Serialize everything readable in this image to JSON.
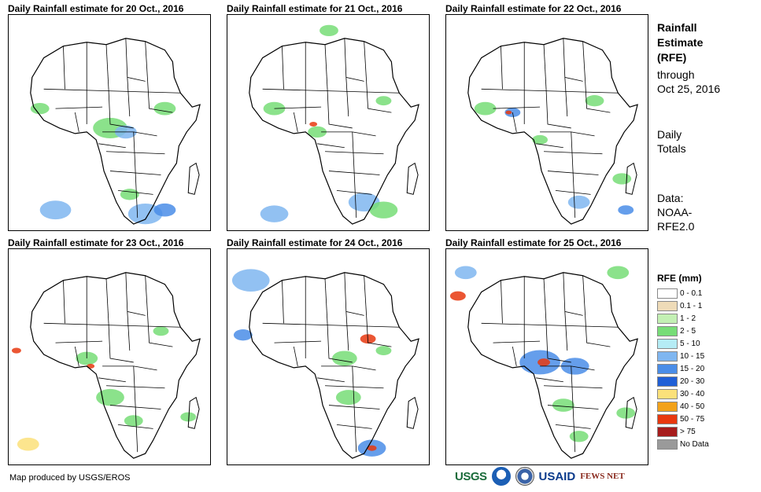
{
  "panels": [
    {
      "title": "Daily Rainfall estimate for 20 Oct., 2016"
    },
    {
      "title": "Daily Rainfall estimate for 21 Oct., 2016"
    },
    {
      "title": "Daily Rainfall estimate for 22 Oct., 2016"
    },
    {
      "title": "Daily Rainfall estimate for 23 Oct., 2016"
    },
    {
      "title": "Daily Rainfall estimate for 24 Oct., 2016"
    },
    {
      "title": "Daily Rainfall estimate for 25 Oct., 2016"
    }
  ],
  "side": {
    "title_l1": "Rainfall",
    "title_l2": "Estimate",
    "title_l3": "(RFE)",
    "through_l1": "through",
    "through_l2": "Oct 25, 2016",
    "totals_l1": "Daily",
    "totals_l2": "Totals",
    "data_l1": "Data:",
    "data_l2": "NOAA-",
    "data_l3": "RFE2.0"
  },
  "legend": {
    "title": "RFE (mm)",
    "items": [
      {
        "label": "0 - 0.1",
        "color": "#ffffff"
      },
      {
        "label": "0.1 - 1",
        "color": "#eedbb8"
      },
      {
        "label": "1 - 2",
        "color": "#c3f0b4"
      },
      {
        "label": "2 - 5",
        "color": "#77dd77"
      },
      {
        "label": "5 - 10",
        "color": "#b5ecf5"
      },
      {
        "label": "10 - 15",
        "color": "#7fb6f0"
      },
      {
        "label": "15 - 20",
        "color": "#4a8de8"
      },
      {
        "label": "20 - 30",
        "color": "#1f5fd6"
      },
      {
        "label": "30 - 40",
        "color": "#fbe17a"
      },
      {
        "label": "40 - 50",
        "color": "#f2a21a"
      },
      {
        "label": "50 - 75",
        "color": "#e8380f"
      },
      {
        "label": "> 75",
        "color": "#a61c1c"
      },
      {
        "label": "No Data",
        "color": "#9a9a9a"
      }
    ]
  },
  "credit": "Map produced by USGS/EROS",
  "logos": {
    "usgs": "USGS",
    "usaid": "USAID",
    "fews": "FEWS NET"
  }
}
